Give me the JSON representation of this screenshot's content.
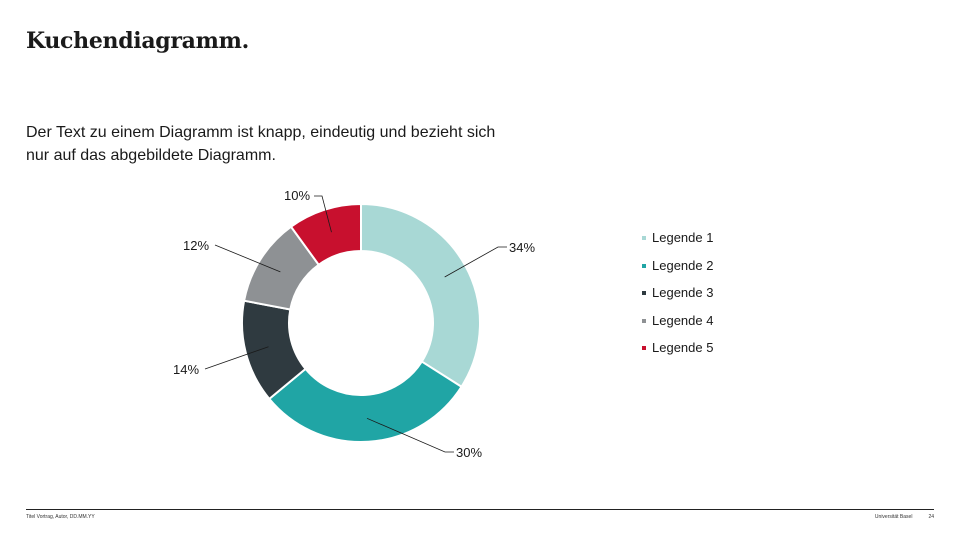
{
  "slide": {
    "title": "Kuchendiagramm.",
    "intro_line1": "Der Text zu einem Diagramm ist knapp, eindeutig und bezieht sich",
    "intro_line2": "nur auf das abgebildete Diagramm."
  },
  "chart_data": {
    "type": "pie",
    "categories": [
      "Legende 1",
      "Legende 2",
      "Legende 3",
      "Legende 4",
      "Legende 5"
    ],
    "values": [
      34,
      30,
      14,
      12,
      10
    ],
    "value_labels": [
      "34%",
      "30%",
      "14%",
      "12%",
      "10%"
    ],
    "colors": [
      "#a8d8d5",
      "#20a5a5",
      "#2f3a40",
      "#8e9194",
      "#c8102e"
    ],
    "donut": true,
    "legend_position": "right"
  },
  "footer": {
    "left": "Titel Vortrag, Autor, DD.MM.YY",
    "university": "Universität Basel",
    "page": "24"
  }
}
